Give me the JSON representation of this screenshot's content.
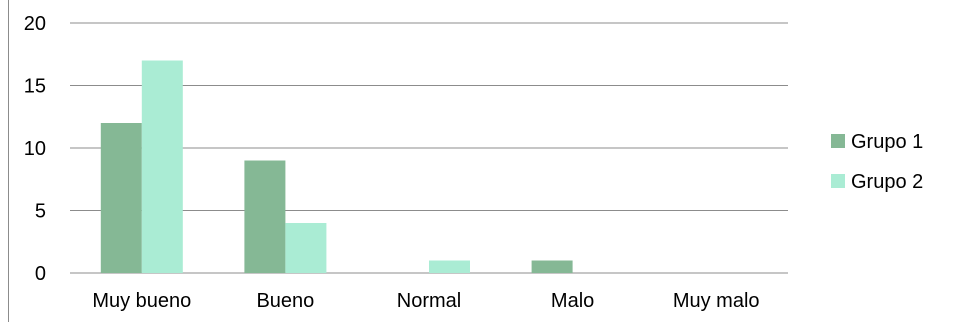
{
  "chart_data": {
    "type": "bar",
    "categories": [
      "Muy bueno",
      "Bueno",
      "Normal",
      "Malo",
      "Muy malo"
    ],
    "series": [
      {
        "name": "Grupo 1",
        "values": [
          12,
          9,
          0,
          1,
          0
        ],
        "color": "#85b895"
      },
      {
        "name": "Grupo 2",
        "values": [
          17,
          4,
          1,
          0,
          0
        ],
        "color": "#aaecd4"
      }
    ],
    "yticks": [
      0,
      5,
      10,
      15,
      20
    ],
    "ylim": [
      0,
      20
    ],
    "grid": true,
    "legend_position": "right",
    "title": "",
    "xlabel": "",
    "ylabel": ""
  }
}
